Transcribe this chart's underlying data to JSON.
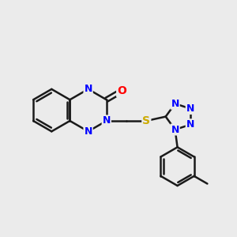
{
  "background_color": "#ebebeb",
  "bond_color": "#1a1a1a",
  "bond_width": 1.8,
  "atom_colors": {
    "N": "#0000ff",
    "O": "#ff0000",
    "S": "#ccaa00",
    "C": "#1a1a1a"
  },
  "font_size_atom": 10,
  "fig_bg": "#ebebeb",
  "xlim": [
    0,
    10
  ],
  "ylim": [
    0,
    10
  ]
}
